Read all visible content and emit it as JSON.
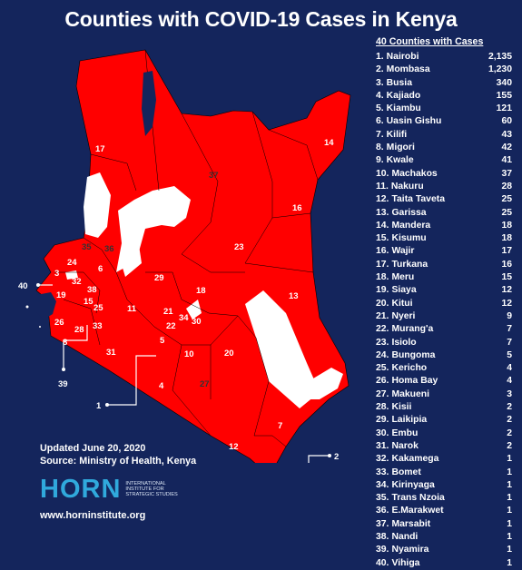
{
  "title": "Counties with COVID-19 Cases in Kenya",
  "list_header": "40 Counties with Cases",
  "counties": [
    {
      "rank": "1.",
      "name": "Nairobi",
      "cases": "2,135"
    },
    {
      "rank": "2.",
      "name": "Mombasa",
      "cases": "1,230"
    },
    {
      "rank": "3.",
      "name": "Busia",
      "cases": "340"
    },
    {
      "rank": "4.",
      "name": "Kajiado",
      "cases": "155"
    },
    {
      "rank": "5.",
      "name": "Kiambu",
      "cases": "121"
    },
    {
      "rank": "6.",
      "name": "Uasin Gishu",
      "cases": "60"
    },
    {
      "rank": "7.",
      "name": "Kilifi",
      "cases": "43"
    },
    {
      "rank": "8.",
      "name": "Migori",
      "cases": "42"
    },
    {
      "rank": "9.",
      "name": "Kwale",
      "cases": "41"
    },
    {
      "rank": "10.",
      "name": "Machakos",
      "cases": "37"
    },
    {
      "rank": "11.",
      "name": "Nakuru",
      "cases": "28"
    },
    {
      "rank": "12.",
      "name": "Taita Taveta",
      "cases": "25"
    },
    {
      "rank": "13.",
      "name": "Garissa",
      "cases": "25"
    },
    {
      "rank": "14.",
      "name": "Mandera",
      "cases": "18"
    },
    {
      "rank": "15.",
      "name": "Kisumu",
      "cases": "18"
    },
    {
      "rank": "16.",
      "name": "Wajir",
      "cases": "17"
    },
    {
      "rank": "17.",
      "name": "Turkana",
      "cases": "16"
    },
    {
      "rank": "18.",
      "name": "Meru",
      "cases": "15"
    },
    {
      "rank": "19.",
      "name": "Siaya",
      "cases": "12"
    },
    {
      "rank": "20.",
      "name": "Kitui",
      "cases": "12"
    },
    {
      "rank": "21.",
      "name": "Nyeri",
      "cases": "9"
    },
    {
      "rank": "22.",
      "name": "Murang'a",
      "cases": "7"
    },
    {
      "rank": "23.",
      "name": "Isiolo",
      "cases": "7"
    },
    {
      "rank": "24.",
      "name": "Bungoma",
      "cases": "5"
    },
    {
      "rank": "25.",
      "name": "Kericho",
      "cases": "4"
    },
    {
      "rank": "26.",
      "name": "Homa Bay",
      "cases": "4"
    },
    {
      "rank": "27.",
      "name": "Makueni",
      "cases": "3"
    },
    {
      "rank": "28.",
      "name": "Kisii",
      "cases": "2"
    },
    {
      "rank": "29.",
      "name": "Laikipia",
      "cases": "2"
    },
    {
      "rank": "30.",
      "name": "Embu",
      "cases": "2"
    },
    {
      "rank": "31.",
      "name": "Narok",
      "cases": "2"
    },
    {
      "rank": "32.",
      "name": "Kakamega",
      "cases": "1"
    },
    {
      "rank": "33.",
      "name": "Bomet",
      "cases": "1"
    },
    {
      "rank": "34.",
      "name": "Kirinyaga",
      "cases": "1"
    },
    {
      "rank": "35.",
      "name": "Trans Nzoia",
      "cases": "1"
    },
    {
      "rank": "36.",
      "name": "E.Marakwet",
      "cases": "1"
    },
    {
      "rank": "37.",
      "name": "Marsabit",
      "cases": "1"
    },
    {
      "rank": "38.",
      "name": "Nandi",
      "cases": "1"
    },
    {
      "rank": "39.",
      "name": "Nyamira",
      "cases": "1"
    },
    {
      "rank": "40.",
      "name": "Vihiga",
      "cases": "1"
    }
  ],
  "map_labels": [
    "17",
    "37",
    "14",
    "16",
    "23",
    "13",
    "35",
    "36",
    "24",
    "6",
    "3",
    "32",
    "38",
    "19",
    "15",
    "25",
    "11",
    "29",
    "18",
    "21",
    "34",
    "30",
    "22",
    "26",
    "28",
    "33",
    "8",
    "31",
    "5",
    "10",
    "20",
    "4",
    "27",
    "7",
    "12",
    "9"
  ],
  "callouts": [
    "40",
    "39",
    "1",
    "2"
  ],
  "footer": {
    "updated": "Updated June 20, 2020",
    "source": "Source: Ministry of Health, Kenya",
    "url": "www.horninstitute.org"
  },
  "logo": {
    "word": "HORN",
    "subtitle": "INTERNATIONAL INSTITUTE FOR STRATEGIC STUDIES"
  },
  "colors": {
    "background": "#14255c",
    "county_with_cases": "#ff0000",
    "county_without_cases": "#ffffff",
    "text": "#ffffff",
    "logo_blue": "#30a9dc"
  }
}
